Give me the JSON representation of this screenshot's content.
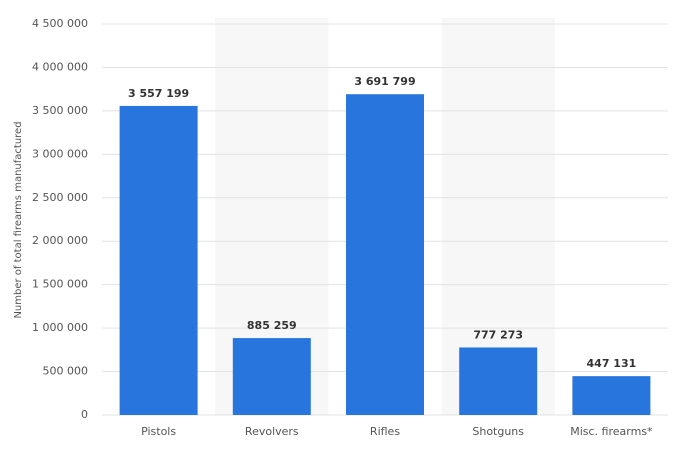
{
  "chart_data": {
    "type": "bar",
    "y_axis_label": "Number of total firearms manufactured",
    "categories": [
      "Pistols",
      "Revolvers",
      "Rifles",
      "Shotguns",
      "Misc. firearms*"
    ],
    "values": [
      3557199,
      885259,
      3691799,
      777273,
      447131
    ],
    "value_labels": [
      "3 557 199",
      "885 259",
      "3 691 799",
      "777 273",
      "447 131"
    ],
    "color": "#2876dd",
    "ylim": [
      0,
      4500000
    ],
    "yticks": [
      0,
      {
        "value": 500000,
        "label": "500 000"
      },
      {
        "value": 1000000,
        "label": "1 000 000"
      },
      {
        "value": 1500000,
        "label": "1 500 000"
      },
      {
        "value": 2000000,
        "label": "2 000 000"
      },
      {
        "value": 2500000,
        "label": "2 500 000"
      },
      {
        "value": 3000000,
        "label": "3 000 000"
      },
      {
        "value": 3500000,
        "label": "3 500 000"
      },
      {
        "value": 4000000,
        "label": "4 000 000"
      },
      {
        "value": 4500000,
        "label": "4 500 000"
      }
    ],
    "grid": true
  }
}
